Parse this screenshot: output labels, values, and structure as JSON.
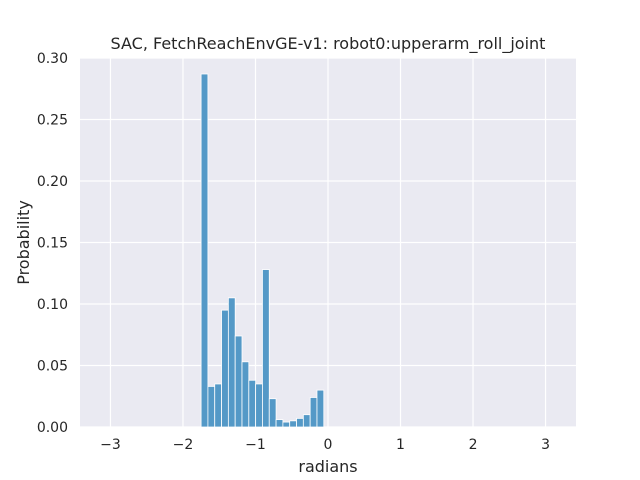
{
  "chart_data": {
    "type": "bar",
    "title": "SAC, FetchReachEnvGE-v1: robot0:upperarm_roll_joint",
    "xlabel": "radians",
    "ylabel": "Probability",
    "xlim": [
      -3.42,
      3.42
    ],
    "ylim": [
      0,
      0.3
    ],
    "xticks": [
      -3,
      -2,
      -1,
      0,
      1,
      2,
      3
    ],
    "xtick_labels": [
      "−3",
      "−2",
      "−1",
      "0",
      "1",
      "2",
      "3"
    ],
    "yticks": [
      0.0,
      0.05,
      0.1,
      0.15,
      0.2,
      0.25,
      0.3
    ],
    "ytick_labels": [
      "0.00",
      "0.05",
      "0.10",
      "0.15",
      "0.20",
      "0.25",
      "0.30"
    ],
    "grid": true,
    "bar_color": "#5499c7",
    "background_color": "#eaeaf2",
    "bin_width": 0.094,
    "bin_lefts": [
      -1.75,
      -1.656,
      -1.562,
      -1.468,
      -1.374,
      -1.28,
      -1.186,
      -1.092,
      -0.998,
      -0.904,
      -0.81,
      -0.716,
      -0.622,
      -0.528,
      -0.434,
      -0.34,
      -0.246,
      -0.152,
      -0.058
    ],
    "values": [
      0.287,
      0.033,
      0.035,
      0.095,
      0.105,
      0.074,
      0.053,
      0.038,
      0.035,
      0.128,
      0.023,
      0.006,
      0.004,
      0.005,
      0.007,
      0.01,
      0.024,
      0.03,
      0.0
    ]
  }
}
